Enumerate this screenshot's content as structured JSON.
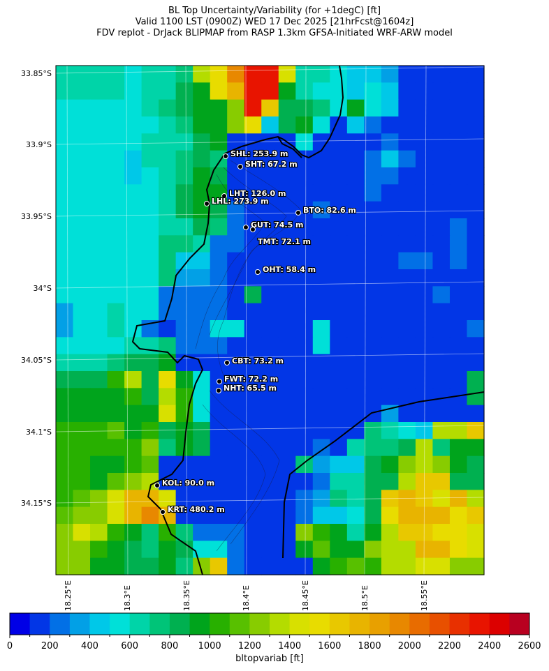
{
  "title": {
    "line1": "BL Top Uncertainty/Variability (for +1degC) [ft]",
    "line2": "Valid 1100 LST (0900Z) WED 17 Dec 2025 [21hrFcst@1604z]",
    "line3": "FDV replot - DrJack BLIPMAP from RASP 1.3km GFSA-Initiated WRF-ARW model"
  },
  "axes": {
    "lat_ticks": [
      "33.85°S",
      "33.9°S",
      "33.95°S",
      "34°S",
      "34.05°S",
      "34.1°S",
      "34.15°S"
    ],
    "lon_ticks": [
      "18.25°E",
      "18.3°E",
      "18.35°E",
      "18.4°E",
      "18.45°E",
      "18.5°E",
      "18.55°E"
    ]
  },
  "colorbar": {
    "label": "bltopvariab [ft]",
    "ticks": [
      "0",
      "200",
      "400",
      "600",
      "800",
      "1000",
      "1200",
      "1400",
      "1600",
      "1800",
      "2000",
      "2200",
      "2400",
      "2600"
    ],
    "bin_size_ft": 100,
    "colors": [
      "#0000e6",
      "#0236e6",
      "#0270e6",
      "#02a0e6",
      "#00c8e8",
      "#00e0d8",
      "#00d4a8",
      "#00c478",
      "#00b050",
      "#00a41c",
      "#28b000",
      "#58c000",
      "#88cc00",
      "#b4dc00",
      "#d8e000",
      "#e8dc00",
      "#e8c800",
      "#e8b400",
      "#e8a000",
      "#e88800",
      "#e86c00",
      "#e85000",
      "#e83000",
      "#e81400",
      "#dc0000",
      "#b80020"
    ]
  },
  "grid_bins": [
    "6 6 6 6 5 6 6 7 13 15 19 23 23 14 6 6 5 4 4 3 1 1 1 1 1",
    "6 6 6 6 5 6 6 8 9 15 17 23 23 9 6 5 5 4 5 4 1 1 1 1 1",
    "5 5 5 5 5 6 7 8 9 9 12 23 16 8 8 7 5 9 5 4 1 1 1 1 1",
    "5 5 5 5 5 5 6 7 9 9 12 15 4 8 9 5 1 4 2 1 1 1 1 1 1",
    "5 5 5 5 5 6 6 6 8 9 1 1 1 1 5 1 1 1 1 2 1 1 1 1 1",
    "5 5 5 5 4 6 6 7 8 7 1 1 1 1 1 1 1 1 2 4 2 1 1 1 1",
    "5 5 5 5 4 5 6 7 9 8 1 1 1 1 1 1 1 1 2 2 1 1 1 1 1",
    "5 5 5 5 5 5 6 8 9 9 1 1 1 1 1 1 1 1 2 1 1 1 1 1 1",
    "5 5 5 5 5 5 6 8 9 8 2 1 1 1 1 2 1 1 1 1 1 1 1 1 1",
    "5 5 5 5 5 5 6 6 8 7 2 1 1 1 1 1 1 1 1 1 1 1 1 2 1",
    "5 5 5 5 5 5 7 7 6 2 2 1 1 1 1 1 1 1 1 1 1 1 1 2 1",
    "5 5 5 5 5 5 7 4 4 2 1 1 1 1 1 1 1 1 1 1 2 2 1 2 1",
    "5 5 5 5 5 5 7 3 3 2 1 1 1 1 1 1 1 1 1 1 1 1 1 1 1",
    "5 5 5 5 5 5 2 2 2 2 1 8 1 1 1 1 1 1 1 1 1 1 2 1 1",
    "3 5 5 6 5 5 2 2 2 2 1 1 1 1 1 1 1 1 1 1 1 1 1 1 1",
    "3 5 5 6 5 2 1 2 2 5 5 1 1 1 1 5 1 1 1 1 1 1 1 1 2",
    "5 5 5 5 6 6 7 2 2 2 1 1 1 1 1 5 1 1 1 1 1 1 1 1 1",
    "6 6 6 7 8 8 9 1 1 1 1 1 1 1 1 1 1 1 1 1 1 1 1 1 1",
    "8 8 8 10 13 8 15 9 5 1 1 1 1 1 1 1 1 1 1 1 1 1 1 1 8",
    "9 9 9 9 10 8 13 10 5 1 1 1 1 1 1 1 1 1 1 1 1 1 1 1 8",
    "9 9 9 9 9 9 14 10 5 1 1 1 1 1 1 1 1 1 1 3 1 1 1 1 1",
    "10 10 10 11 9 10 8 9 8 1 1 1 1 1 1 1 1 1 7 6 5 4 13 13 16",
    "10 10 10 10 10 12 7 9 8 1 1 1 1 1 1 2 1 6 7 7 8 13 7 9 9",
    "10 10 9 9 10 11 1 1 1 1 1 1 1 1 7 3 4 4 8 9 12 13 12 9 8",
    "10 10 9 11 12 13 1 1 1 1 1 1 1 1 1 2 6 6 8 8 13 16 16 8 8",
    "10 11 12 14 17 17 14 1 1 1 1 1 1 1 2 3 7 6 8 16 17 16 14 17 13",
    "11 12 12 14 17 19 17 1 1 1 1 1 1 1 2 4 4 5 8 15 17 17 17 15 16",
    "12 14 13 10 9 7 10 7 2 2 2 1 1 1 12 10 9 6 9 13 16 16 15 15 14",
    "12 12 10 9 8 7 9 8 5 5 2 1 1 1 9 11 9 9 12 13 13 17 17 15 14",
    "12 12 9 9 8 8 9 7 12 16 2 1 1 1 1 9 10 11 10 13 13 14 14 12 12"
  ],
  "stations": [
    {
      "label": "SHL: 253.9 m"
    },
    {
      "label": "SHT: 67.2 m"
    },
    {
      "label": "LHT: 126.0 m"
    },
    {
      "label": "LHL: 273.9 m"
    },
    {
      "label": "BTO: 82.6 m"
    },
    {
      "label": "GUT: 74.5 m"
    },
    {
      "label": "TMT: 72.1 m"
    },
    {
      "label": "OHT: 58.4 m"
    },
    {
      "label": "CBT: 73.2 m"
    },
    {
      "label": "FWT: 72.2 m"
    },
    {
      "label": "NHT: 65.5 m"
    },
    {
      "label": "KOL: 90.0 m"
    },
    {
      "label": "KRT: 480.2 m"
    }
  ]
}
